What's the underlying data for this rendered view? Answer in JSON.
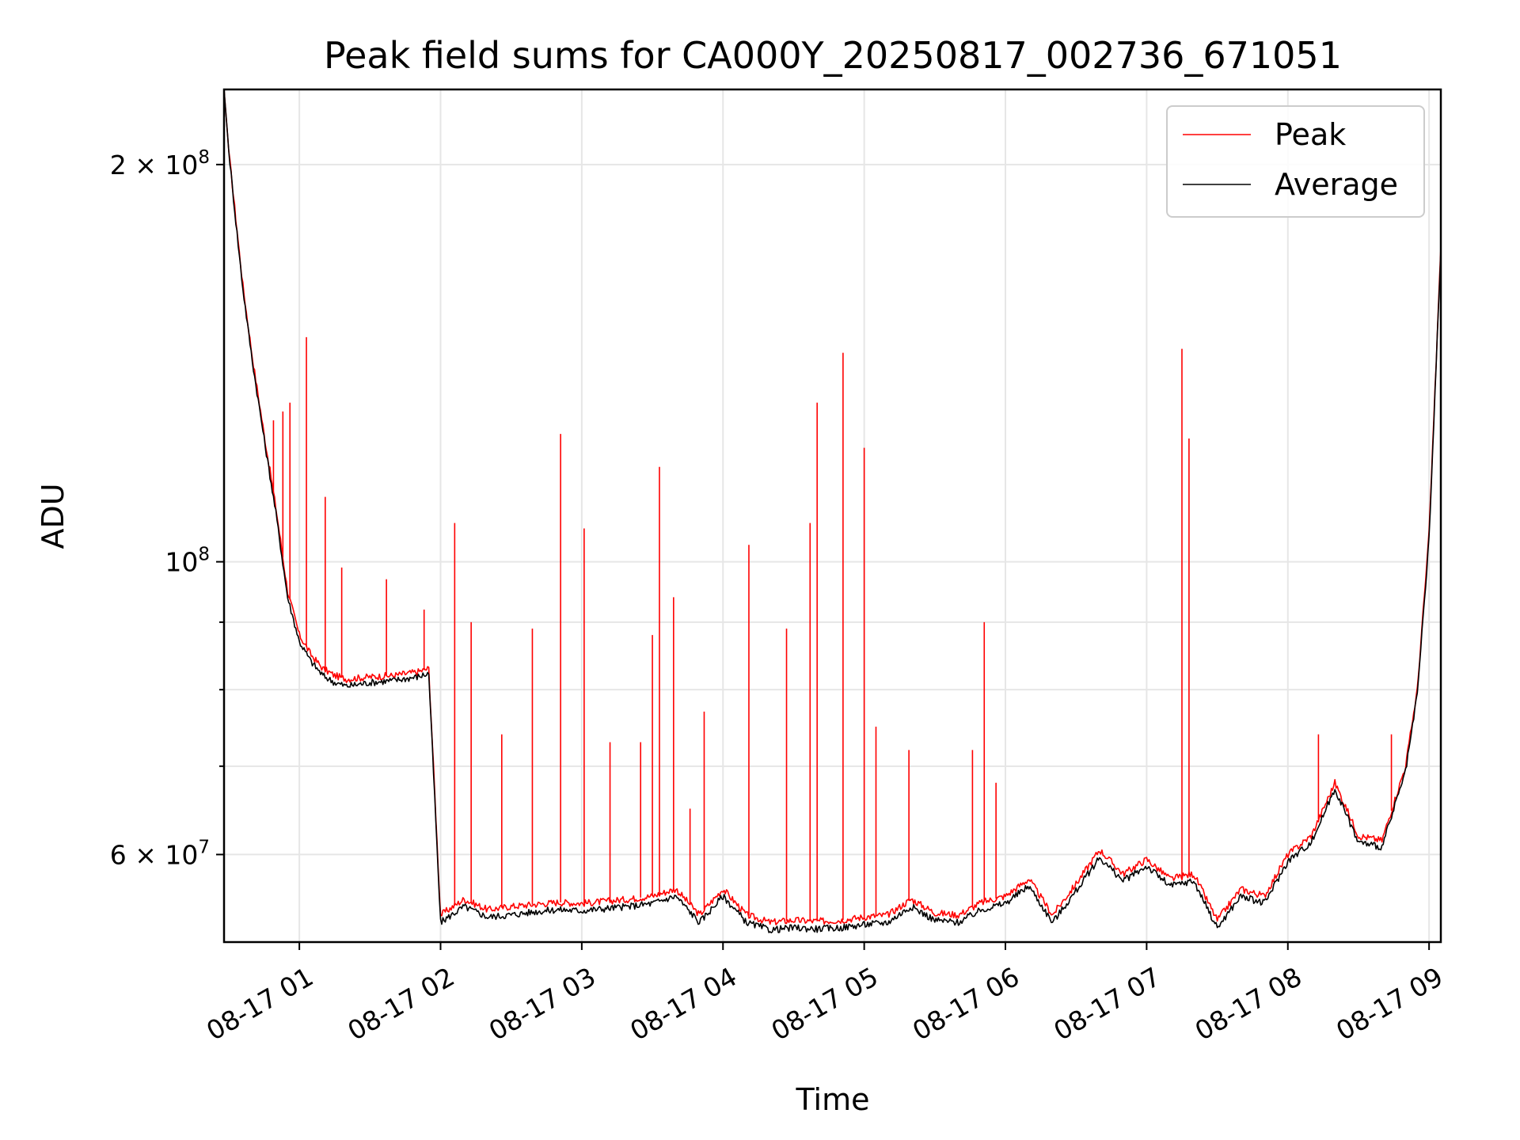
{
  "chart_data": {
    "type": "line",
    "title": "Peak field sums for CA000Y_20250817_002736_671051",
    "xlabel": "Time",
    "ylabel": "ADU",
    "y_scale": "log",
    "ylim": [
      51500000,
      228000000
    ],
    "xlim": [
      "08-17 00:28",
      "08-17 09:05"
    ],
    "grid": true,
    "legend_position": "top-right",
    "x_ticks": [
      "08-17 01",
      "08-17 02",
      "08-17 03",
      "08-17 04",
      "08-17 05",
      "08-17 06",
      "08-17 07",
      "08-17 08",
      "08-17 09"
    ],
    "y_ticks": [
      {
        "value": 200000000,
        "mantissa": "2",
        "exponent": "8"
      },
      {
        "value": 100000000,
        "mantissa": "",
        "exponent": "8"
      },
      {
        "value": 60000000,
        "mantissa": "6",
        "exponent": "7"
      }
    ],
    "series": [
      {
        "name": "Peak",
        "color": "#ff0000",
        "x": [
          "00:28",
          "00:30",
          "00:33",
          "00:36",
          "00:40",
          "00:45",
          "00:50",
          "00:55",
          "01:00",
          "01:05",
          "01:10",
          "01:15",
          "01:20",
          "01:30",
          "01:40",
          "01:50",
          "01:55",
          "02:00",
          "02:10",
          "02:20",
          "02:30",
          "02:40",
          "02:50",
          "03:00",
          "03:10",
          "03:20",
          "03:30",
          "03:40",
          "03:50",
          "04:00",
          "04:10",
          "04:20",
          "04:30",
          "04:40",
          "04:50",
          "05:00",
          "05:10",
          "05:20",
          "05:30",
          "05:40",
          "05:50",
          "06:00",
          "06:10",
          "06:20",
          "06:30",
          "06:40",
          "06:50",
          "07:00",
          "07:10",
          "07:20",
          "07:30",
          "07:40",
          "07:50",
          "08:00",
          "08:10",
          "08:20",
          "08:30",
          "08:40",
          "08:50",
          "08:55",
          "09:00",
          "09:05"
        ],
        "values": [
          228000000,
          205000000,
          182000000,
          162000000,
          143000000,
          125000000,
          110000000,
          95000000,
          88000000,
          85000000,
          83000000,
          82000000,
          81500000,
          81800000,
          82000000,
          82500000,
          83000000,
          54000000,
          55500000,
          54500000,
          54800000,
          55000000,
          55200000,
          55100000,
          55300000,
          55500000,
          55800000,
          56500000,
          54000000,
          56500000,
          54000000,
          53300000,
          53500000,
          53400000,
          53500000,
          53800000,
          54000000,
          55500000,
          54200000,
          54000000,
          55200000,
          55800000,
          57500000,
          54000000,
          57000000,
          60500000,
          58000000,
          59500000,
          57500000,
          58000000,
          53500000,
          56500000,
          55800000,
          60000000,
          62000000,
          68000000,
          62000000,
          61500000,
          70000000,
          80000000,
          105000000,
          173000000
        ],
        "spikes": [
          {
            "x": "00:49",
            "value": 128000000
          },
          {
            "x": "00:53",
            "value": 130000000
          },
          {
            "x": "00:56",
            "value": 132000000
          },
          {
            "x": "01:03",
            "value": 148000000
          },
          {
            "x": "01:11",
            "value": 112000000
          },
          {
            "x": "01:18",
            "value": 99000000
          },
          {
            "x": "01:37",
            "value": 97000000
          },
          {
            "x": "01:53",
            "value": 92000000
          },
          {
            "x": "02:06",
            "value": 107000000
          },
          {
            "x": "02:13",
            "value": 90000000
          },
          {
            "x": "02:26",
            "value": 74000000
          },
          {
            "x": "02:39",
            "value": 89000000
          },
          {
            "x": "02:51",
            "value": 125000000
          },
          {
            "x": "03:01",
            "value": 106000000
          },
          {
            "x": "03:12",
            "value": 73000000
          },
          {
            "x": "03:25",
            "value": 73000000
          },
          {
            "x": "03:30",
            "value": 88000000
          },
          {
            "x": "03:33",
            "value": 118000000
          },
          {
            "x": "03:39",
            "value": 94000000
          },
          {
            "x": "03:46",
            "value": 65000000
          },
          {
            "x": "03:52",
            "value": 77000000
          },
          {
            "x": "04:11",
            "value": 103000000
          },
          {
            "x": "04:27",
            "value": 89000000
          },
          {
            "x": "04:37",
            "value": 107000000
          },
          {
            "x": "04:40",
            "value": 132000000
          },
          {
            "x": "04:51",
            "value": 144000000
          },
          {
            "x": "05:00",
            "value": 122000000
          },
          {
            "x": "05:05",
            "value": 75000000
          },
          {
            "x": "05:19",
            "value": 72000000
          },
          {
            "x": "05:46",
            "value": 72000000
          },
          {
            "x": "05:51",
            "value": 90000000
          },
          {
            "x": "05:56",
            "value": 68000000
          },
          {
            "x": "07:15",
            "value": 145000000
          },
          {
            "x": "07:18",
            "value": 124000000
          },
          {
            "x": "08:13",
            "value": 74000000
          },
          {
            "x": "08:44",
            "value": 74000000
          }
        ]
      },
      {
        "name": "Average",
        "color": "#000000",
        "x": [
          "00:28",
          "00:30",
          "00:33",
          "00:36",
          "00:40",
          "00:45",
          "00:50",
          "00:55",
          "01:00",
          "01:05",
          "01:10",
          "01:15",
          "01:20",
          "01:30",
          "01:40",
          "01:50",
          "01:55",
          "02:00",
          "02:10",
          "02:20",
          "02:30",
          "02:40",
          "02:50",
          "03:00",
          "03:10",
          "03:20",
          "03:30",
          "03:40",
          "03:50",
          "04:00",
          "04:10",
          "04:20",
          "04:30",
          "04:40",
          "04:50",
          "05:00",
          "05:10",
          "05:20",
          "05:30",
          "05:40",
          "05:50",
          "06:00",
          "06:10",
          "06:20",
          "06:30",
          "06:40",
          "06:50",
          "07:00",
          "07:10",
          "07:20",
          "07:30",
          "07:40",
          "07:50",
          "08:00",
          "08:10",
          "08:20",
          "08:30",
          "08:40",
          "08:50",
          "08:55",
          "09:00",
          "09:05"
        ],
        "values": [
          228000000,
          205000000,
          181000000,
          161000000,
          142000000,
          124000000,
          109000000,
          94000000,
          87000000,
          84000000,
          82000000,
          81000000,
          80500000,
          81000000,
          81300000,
          81800000,
          82300000,
          53300000,
          54800000,
          53800000,
          54000000,
          54300000,
          54500000,
          54400000,
          54600000,
          54800000,
          55100000,
          55800000,
          53300000,
          55800000,
          53300000,
          52600000,
          52800000,
          52700000,
          52800000,
          53100000,
          53300000,
          54800000,
          53500000,
          53300000,
          54500000,
          55100000,
          56800000,
          53300000,
          56300000,
          59700000,
          57300000,
          58800000,
          56800000,
          57300000,
          52800000,
          55800000,
          55100000,
          59300000,
          61300000,
          67300000,
          61300000,
          60800000,
          69300000,
          79300000,
          104000000,
          172000000
        ]
      }
    ]
  }
}
